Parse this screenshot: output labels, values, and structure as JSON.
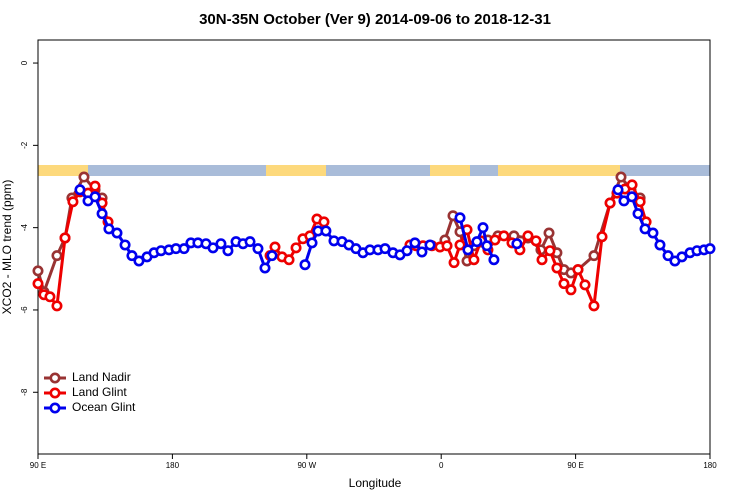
{
  "chart_data": {
    "type": "line",
    "title": "30N-35N October (Ver 9)   2014-09-06 to 2018-12-31",
    "x_label": "Longitude",
    "y_label": "XCO2 - MLO trend (ppm)",
    "xlim": [
      90,
      540
    ],
    "xticks": [
      {
        "value": 90,
        "label": "90 E"
      },
      {
        "value": 180,
        "label": "180"
      },
      {
        "value": 270,
        "label": "90 W"
      },
      {
        "value": 360,
        "label": "0"
      },
      {
        "value": 450,
        "label": "90 E"
      },
      {
        "value": 540,
        "label": "180"
      }
    ],
    "ylim": [
      -9.5,
      0.56
    ],
    "yticks": [
      0,
      -2,
      -4,
      -6,
      -8
    ],
    "legend": "bottomleft",
    "series": [
      {
        "name": "Land Nadir",
        "color": "#993333",
        "x": [
          90,
          94,
          102.7,
          108.1,
          112.7,
          120.8,
          128.2,
          132.9,
          null,
          362.5,
          367.9,
          372.6,
          377.3,
          381.9,
          386.6,
          391.3,
          398,
          408.7,
          418.1,
          426.8,
          432.2,
          437.5,
          442.2,
          446.9,
          451.6,
          462.3,
          473.1,
          480.4,
          487.1,
          493.2
        ],
        "values": [
          -5.05,
          -5.56,
          -4.68,
          -4.25,
          -3.28,
          -2.77,
          -3.08,
          -3.28,
          null,
          -4.3,
          -3.71,
          -4.1,
          -4.81,
          -4.44,
          -4.35,
          -4.3,
          -4.2,
          -4.2,
          -4.25,
          -4.54,
          -4.13,
          -4.61,
          -5.02,
          -5.1,
          -5.02,
          -4.68,
          -3.4,
          -2.77,
          -3.08,
          -3.28
        ]
      },
      {
        "name": "Land Glint",
        "color": "#ee0000",
        "x": [
          90,
          94,
          98,
          102.7,
          108.1,
          113.4,
          118.1,
          123.5,
          128.2,
          132.9,
          136.9,
          null,
          245.4,
          248.7,
          253.4,
          258.1,
          262.8,
          267.4,
          272.1,
          276.8,
          281.5,
          null,
          339.1,
          343.1,
          347.8,
          353.8,
          359.2,
          363.9,
          368.6,
          372.6,
          377.3,
          381.9,
          386.6,
          391.3,
          396,
          402,
          407.4,
          412.7,
          418.1,
          423.5,
          427.5,
          432.8,
          437.5,
          442.2,
          446.9,
          451.6,
          456.3,
          462.3,
          467.7,
          473.1,
          477.7,
          483.1,
          487.8,
          493.2,
          497.2
        ],
        "values": [
          -5.36,
          -5.63,
          -5.68,
          -5.9,
          -4.25,
          -3.37,
          -3.13,
          -3.16,
          -2.99,
          -3.4,
          -3.86,
          null,
          -4.68,
          -4.47,
          -4.71,
          -4.78,
          -4.49,
          -4.27,
          -4.2,
          -3.79,
          -3.86,
          null,
          -4.42,
          -4.44,
          -4.44,
          -4.44,
          -4.47,
          -4.44,
          -4.85,
          -4.42,
          -4.05,
          -4.78,
          -4.32,
          -4.54,
          -4.3,
          -4.2,
          -4.37,
          -4.54,
          -4.2,
          -4.32,
          -4.78,
          -4.56,
          -4.98,
          -5.36,
          -5.51,
          -5.02,
          -5.39,
          -5.9,
          -4.22,
          -3.4,
          -3.16,
          -3.06,
          -2.96,
          -3.37,
          -3.86
        ]
      },
      {
        "name": "Ocean Glint",
        "color": "#0000ee",
        "x": [
          118.1,
          123.5,
          128.2,
          132.9,
          137.5,
          142.9,
          148.3,
          152.9,
          157.6,
          163,
          167.7,
          172.4,
          177.7,
          182.4,
          187.8,
          192.4,
          197.1,
          202.5,
          207.2,
          212.5,
          217.2,
          222.6,
          227.3,
          232,
          237.3,
          242,
          246.7,
          null,
          268.8,
          273.5,
          277.5,
          282.8,
          288.2,
          293.6,
          298.2,
          302.9,
          307.6,
          312.3,
          317.7,
          322.4,
          327.7,
          332.4,
          337.1,
          342.4,
          347.1,
          352.5,
          null,
          372.6,
          377.9,
          383.9,
          388,
          390.6,
          395.3,
          null,
          410.7,
          null,
          478.4,
          482.4,
          487.7,
          491.8,
          496.5,
          501.8,
          506.5,
          511.9,
          516.5,
          521.2,
          526.6,
          531.3,
          536,
          540
        ],
        "values": [
          -3.08,
          -3.35,
          -3.25,
          -3.66,
          -4.03,
          -4.13,
          -4.42,
          -4.68,
          -4.81,
          -4.71,
          -4.61,
          -4.56,
          -4.54,
          -4.51,
          -4.51,
          -4.37,
          -4.37,
          -4.39,
          -4.49,
          -4.39,
          -4.56,
          -4.34,
          -4.39,
          -4.34,
          -4.51,
          -4.98,
          -4.68,
          null,
          -4.9,
          -4.37,
          -4.08,
          -4.08,
          -4.32,
          -4.34,
          -4.42,
          -4.51,
          -4.61,
          -4.54,
          -4.54,
          -4.51,
          -4.61,
          -4.66,
          -4.56,
          -4.37,
          -4.59,
          -4.42,
          null,
          -3.76,
          -4.54,
          -4.34,
          -4.0,
          -4.44,
          -4.78,
          null,
          -4.39,
          null,
          -3.08,
          -3.35,
          -3.25,
          -3.66,
          -4.03,
          -4.13,
          -4.42,
          -4.68,
          -4.81,
          -4.71,
          -4.61,
          -4.56,
          -4.54,
          -4.51
        ]
      }
    ]
  }
}
